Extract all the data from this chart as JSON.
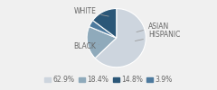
{
  "labels": [
    "WHITE",
    "BLACK",
    "HISPANIC",
    "ASIAN"
  ],
  "values": [
    62.9,
    18.4,
    3.9,
    14.8
  ],
  "colors": [
    "#cdd5de",
    "#8faabb",
    "#4d7a9e",
    "#2b5778"
  ],
  "legend_labels": [
    "62.9%",
    "18.4%",
    "14.8%",
    "3.9%"
  ],
  "legend_colors": [
    "#cdd5de",
    "#8faabb",
    "#2b5778",
    "#4d7a9e"
  ],
  "startangle": 90,
  "background_color": "#f0f0f0",
  "label_fontsize": 5.5,
  "legend_fontsize": 5.5
}
